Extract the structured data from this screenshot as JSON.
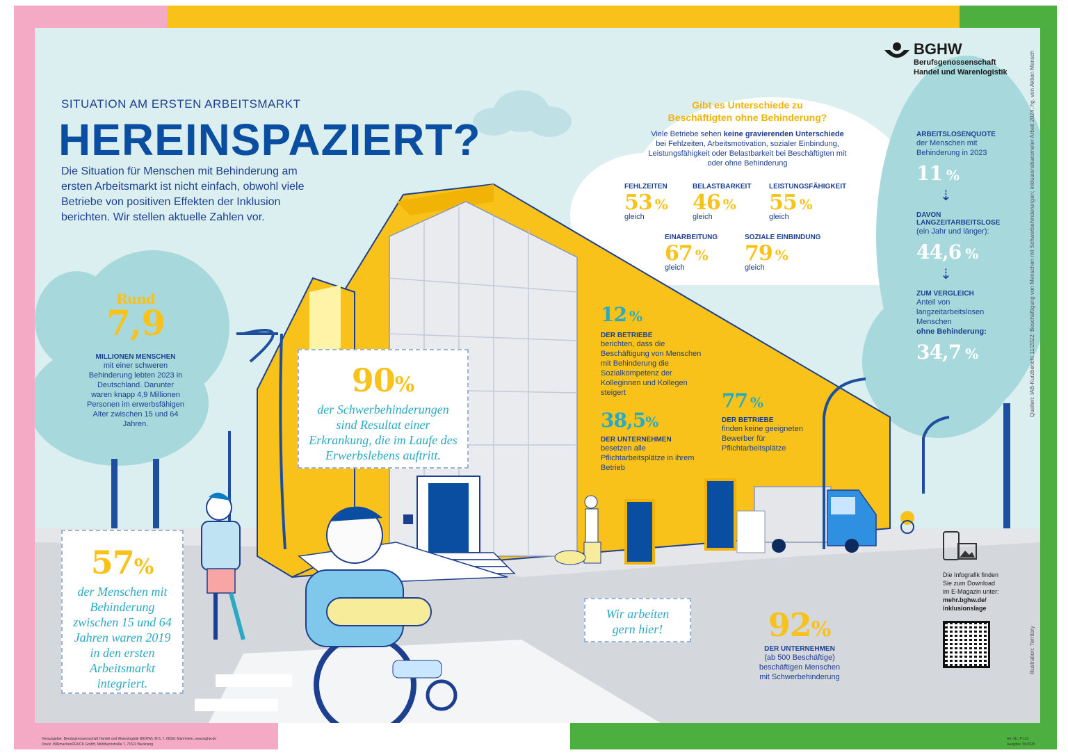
{
  "header": {
    "kicker": "SITUATION AM ERSTEN ARBEITSMARKT",
    "title": "HEREINSPAZIERT?",
    "intro": "Die Situation für Menschen mit Behinderung am ersten Arbeitsmarkt ist nicht einfach, obwohl viele Betriebe von positiven Effekten der Inklusion berichten. Wir stellen aktuelle Zahlen vor."
  },
  "logo": {
    "name": "BGHW",
    "line1": "Berufsgenossenschaft",
    "line2": "Handel und Warenlogistik"
  },
  "population": {
    "prefix": "Rund",
    "value": "7,9",
    "label": "MILLIONEN MENSCHEN",
    "text": "mit einer schweren Behinderung lebten 2023 in Deutschland. Darunter waren knapp 4,9 Millionen Personen im erwerbsfähigen Alter zwischen 15 und 64 Jahren."
  },
  "disease": {
    "value": "90",
    "unit": "%",
    "text": "der Schwerbehinderungen sind Resultat einer Erkrankung, die im Laufe des Erwerbslebens auftritt."
  },
  "integrated": {
    "value": "57",
    "unit": "%",
    "text": "der Menschen mit Behinderung zwischen 15 und 64 Jahren waren 2019 in den ersten Arbeitsmarkt integriert."
  },
  "differences": {
    "title": "Gibt es Unterschiede zu Beschäftigten ohne Behinderung?",
    "text_before": "Viele Betriebe sehen ",
    "text_bold": "keine gravierenden Unterschiede",
    "text_after": " bei Fehlzeiten, Arbeitsmotivation, sozialer Einbindung, Leistungsfähigkeit oder Belastbarkeit bei Beschäftigten mit oder ohne Behinderung",
    "items": [
      {
        "label": "FEHLZEITEN",
        "value": "53",
        "unit": "%",
        "sub": "gleich"
      },
      {
        "label": "BELASTBARKEIT",
        "value": "46",
        "unit": "%",
        "sub": "gleich"
      },
      {
        "label": "LEISTUNGSFÄHIGKEIT",
        "value": "55",
        "unit": "%",
        "sub": "gleich"
      },
      {
        "label": "EINARBEITUNG",
        "value": "67",
        "unit": "%",
        "sub": "gleich"
      },
      {
        "label": "SOZIALE EINBINDUNG",
        "value": "79",
        "unit": "%",
        "sub": "gleich"
      }
    ]
  },
  "building_stats": {
    "social": {
      "value": "12",
      "unit": "%",
      "label": "DER BETRIEBE",
      "text": "berichten, dass die Beschäftigung von Menschen mit Behinderung die Sozialkompetenz der Kolleginnen und Kollegen steigert"
    },
    "quota": {
      "value": "38,5",
      "unit": "%",
      "label": "DER UNTERNEHMEN",
      "text": "besetzen alle Pflichtarbeitsplätze in ihrem Betrieb"
    },
    "applicants": {
      "value": "77",
      "unit": "%",
      "label": "DER BETRIEBE",
      "text": "finden keine geeigneten Bewerber für Pflichtarbeitsplätze"
    }
  },
  "employers": {
    "value": "92",
    "unit": "%",
    "label": "DER UNTERNEHMEN",
    "text": "(ab 500 Beschäftige) beschäftigen Menschen mit Schwerbehinderung"
  },
  "speech": {
    "work_here": "Wir arbeiten gern hier!"
  },
  "unemployment": {
    "label1": "ARBEITSLOSENQUOTE",
    "text1": "der Menschen mit Behinderung in 2023",
    "value1": "11",
    "label2": "DAVON LANGZEITARBEITSLOSE",
    "text2": "(ein Jahr und länger):",
    "value2": "44,6",
    "label3": "ZUM VERGLEICH",
    "text3": "Anteil von langzeitarbeitslosen Menschen",
    "text3_bold": "ohne Behinderung:",
    "value3": "34,7",
    "unit": "%"
  },
  "download": {
    "text": "Die Infografik finden Sie zum Download im E-Magazin unter:",
    "link": "mehr.bghw.de/ inklusionslage"
  },
  "side_credits": {
    "sources": "Quellen: IAB-Kurzbericht 11/2022: Beschäftigung von Menschen mit Schwerbehinderungen; Inklusionsbarometer Arbeit 2024, hg. von Aktion Mensch",
    "illustration": "Illustration: Territory"
  },
  "footer": {
    "publisher": "Herausgeber: Berufsgenossenschaft Handel und Warenlogistik (BGHW), M 5, 7, 68161 Mannheim, www.bghw.de",
    "print": "Druck: WIRmachenDRUCK GmbH, Mühlbachstraße 7, 71522 Backnang",
    "art": "Art.-Nr.: P 113",
    "issue": "Ausgabe: 06/2025"
  },
  "colors": {
    "accent_yellow": "#f9c21b",
    "brand_blue": "#1d3f8f",
    "teal": "#2aa9c4",
    "frame_pink": "#f4a9c4",
    "frame_green": "#4caf3f",
    "sky": "#dceff0"
  }
}
